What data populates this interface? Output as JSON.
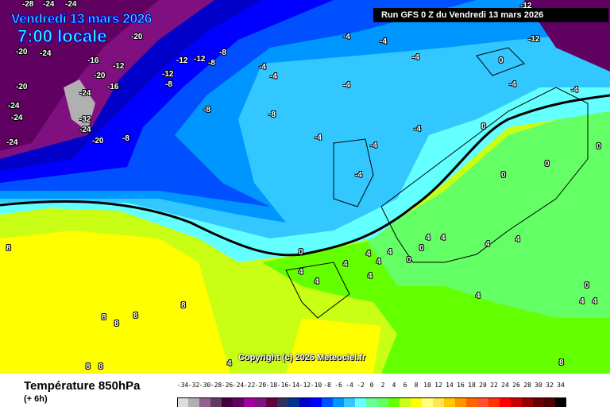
{
  "header": {
    "date": "Vendredi 13 mars 2026",
    "time": "7:00 locale",
    "run": "Run GFS 0 Z du Vendredi 13 mars 2026"
  },
  "copyright": "Copyright (c) 2026 Meteociel.fr",
  "footer": {
    "title": "Température 850hPa",
    "subtitle": "(+ 6h)"
  },
  "legend": {
    "ticks": [
      "-34",
      "-32",
      "-30",
      "-28",
      "-26",
      "-24",
      "-22",
      "-20",
      "-18",
      "-16",
      "-14",
      "-12",
      "-10",
      "-8",
      "-6",
      "-4",
      "-2",
      "0",
      "2",
      "4",
      "6",
      "8",
      "10",
      "12",
      "14",
      "16",
      "18",
      "20",
      "22",
      "24",
      "26",
      "28",
      "30",
      "32",
      "34"
    ],
    "colors": [
      "#dcdcdc",
      "#b0b0b0",
      "#906090",
      "#603c60",
      "#400040",
      "#600060",
      "#a000a0",
      "#801080",
      "#600040",
      "#303060",
      "#003090",
      "#0000c8",
      "#0000ff",
      "#0050ff",
      "#0096ff",
      "#32c8ff",
      "#64ffff",
      "#64ff96",
      "#64ff64",
      "#64ff00",
      "#c8ff14",
      "#ffff00",
      "#ffff80",
      "#ffe650",
      "#ffc800",
      "#ff9600",
      "#ff6400",
      "#ff5032",
      "#ff3200",
      "#ff0000",
      "#c80000",
      "#960000",
      "#640000",
      "#500000",
      "#000000"
    ]
  },
  "isotherms": [
    "-28",
    "-24",
    "-24",
    "-20",
    "-24",
    "-20",
    "-16",
    "-12",
    "-12",
    "-8",
    "-8",
    "-12",
    "-8",
    "-20",
    "-20",
    "-24",
    "-16",
    "-12",
    "-24",
    "-24",
    "-32",
    "-24",
    "-24",
    "-20",
    "-8",
    "-8",
    "-8",
    "-4",
    "-4",
    "-4",
    "-4",
    "-4",
    "-4",
    "-4",
    "-4",
    "-4",
    "-4",
    "0",
    "0",
    "-4",
    "-4",
    "-12",
    "-12",
    "0",
    "0",
    "0",
    "4",
    "4",
    "4",
    "4",
    "0",
    "0",
    "0",
    "4",
    "4",
    "4",
    "4",
    "4",
    "4",
    "4",
    "4",
    "8",
    "8",
    "8",
    "8",
    "8",
    "8",
    "8",
    "8",
    "4",
    "4",
    "4",
    "0"
  ]
}
